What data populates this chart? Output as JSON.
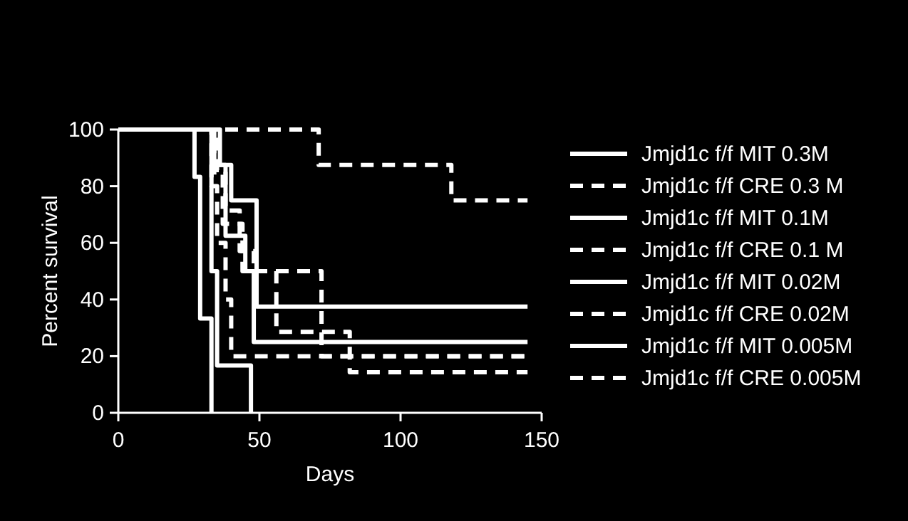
{
  "chart_data": {
    "type": "step",
    "xlabel": "Days",
    "ylabel": "Percent survival",
    "xlim": [
      0,
      150
    ],
    "ylim": [
      0,
      100
    ],
    "xticks": [
      0,
      50,
      100,
      150
    ],
    "yticks": [
      0,
      20,
      40,
      60,
      80,
      100
    ],
    "grid": false,
    "legend": "right",
    "series": [
      {
        "name": "Jmjd1c f/f MIT 0.3M",
        "color": "#ffffff",
        "line_style": "solid",
        "x": [
          0,
          27,
          29,
          33
        ],
        "values": [
          100,
          83.3,
          33.3,
          0
        ]
      },
      {
        "name": "Jmjd1c f/f CRE 0.3 M",
        "color": "#ffffff",
        "line_style": "dashed",
        "x": [
          0,
          71,
          118,
          145
        ],
        "values": [
          100,
          87.5,
          75,
          75
        ]
      },
      {
        "name": "Jmjd1c f/f MIT 0.1M",
        "color": "#ffffff",
        "line_style": "solid",
        "x": [
          0,
          33,
          35,
          47
        ],
        "values": [
          100,
          50,
          16.7,
          0
        ]
      },
      {
        "name": "Jmjd1c f/f CRE 0.1 M",
        "color": "#ffffff",
        "line_style": "dashed",
        "x": [
          0,
          35,
          38,
          43,
          48,
          56,
          82,
          145
        ],
        "values": [
          100,
          85.7,
          71.4,
          57.1,
          50,
          28.6,
          14.3,
          14.3
        ]
      },
      {
        "name": "Jmjd1c f/f MIT 0.02M",
        "color": "#ffffff",
        "line_style": "solid",
        "x": [
          0,
          36,
          40,
          49,
          145
        ],
        "values": [
          100,
          87.5,
          75,
          37.5,
          37.5
        ]
      },
      {
        "name": "Jmjd1c f/f CRE 0.02M",
        "color": "#ffffff",
        "line_style": "dashed",
        "x": [
          0,
          33,
          35,
          38,
          40,
          145
        ],
        "values": [
          100,
          80,
          60,
          40,
          20,
          20
        ]
      },
      {
        "name": "Jmjd1c f/f MIT 0.005M",
        "color": "#ffffff",
        "line_style": "solid",
        "x": [
          0,
          34,
          38,
          45,
          48,
          145
        ],
        "values": [
          100,
          87.5,
          62.5,
          50,
          25,
          25
        ]
      },
      {
        "name": "Jmjd1c f/f CRE 0.005M",
        "color": "#ffffff",
        "line_style": "dashed",
        "x": [
          0,
          34,
          37,
          44,
          72,
          145
        ],
        "values": [
          100,
          83.3,
          66.7,
          50,
          20,
          20
        ]
      }
    ]
  }
}
